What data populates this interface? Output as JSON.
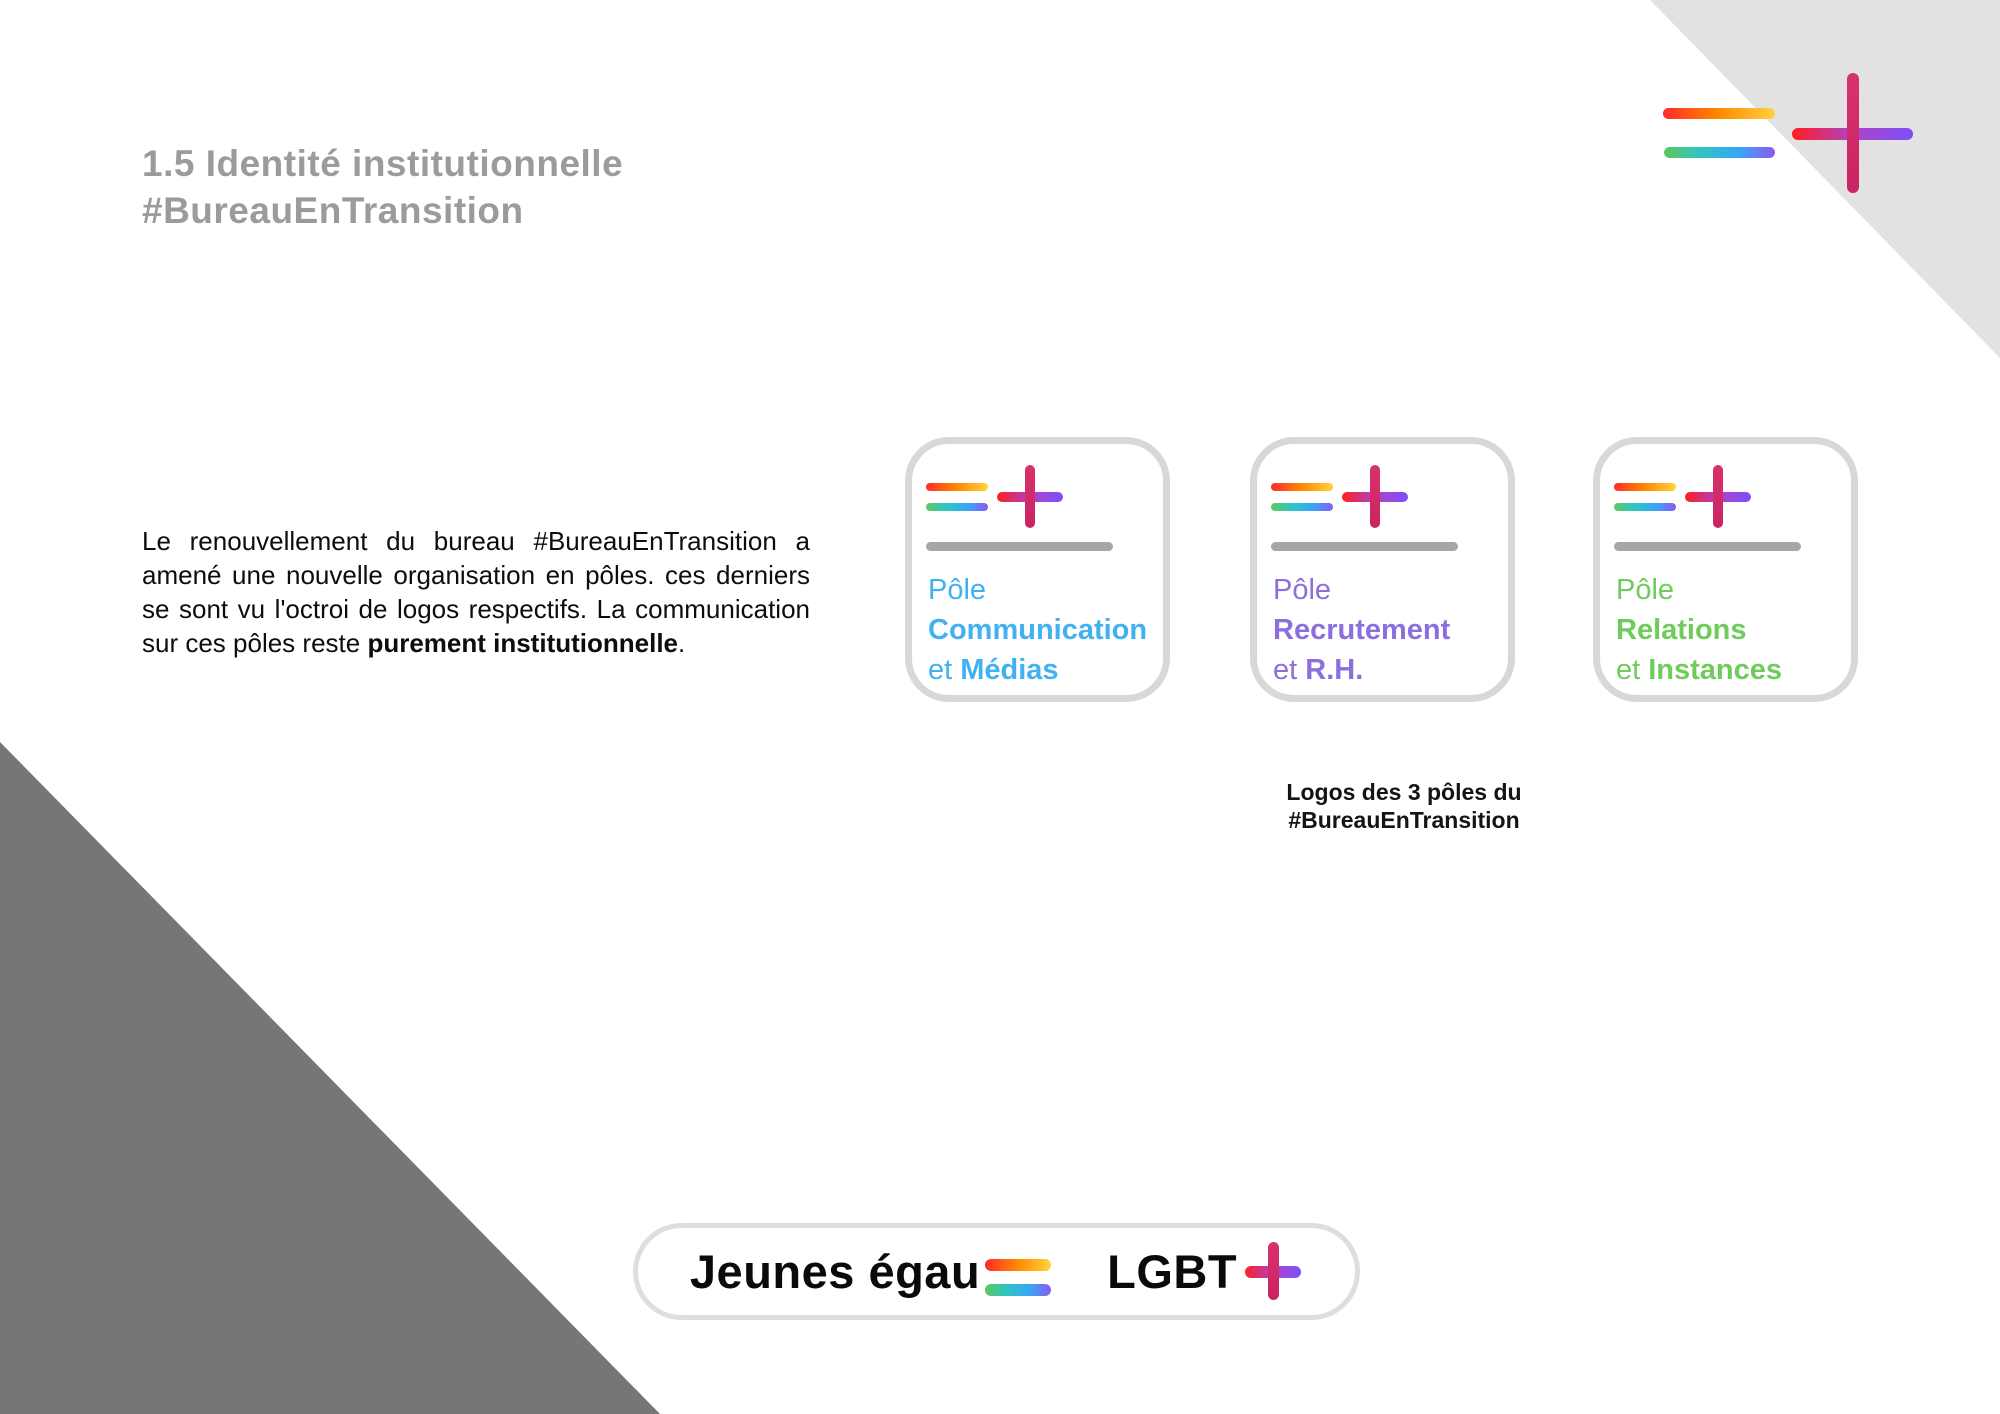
{
  "slide": {
    "title": {
      "line1": "1.5 Identité institutionnelle",
      "line2": "#BureauEnTransition"
    },
    "paragraph": {
      "lead": "Le renouvellement  du bureau #BureauEnTransition a amené une nouvelle organisation  en pôles. ces derniers se sont vu l'octroi de logos respectifs. La communication sur ces pôles reste ",
      "emphasis": "purement institutionnelle",
      "tail": "."
    },
    "cards": [
      {
        "word1": "Pôle",
        "word2": "Communication",
        "word3a": "et ",
        "word3b": "Médias",
        "color": "#41b1f2"
      },
      {
        "word1": "Pôle",
        "word2": "Recrutement",
        "word3a": "et ",
        "word3b": "R.H.",
        "color": "#8c6ede"
      },
      {
        "word1": "Pôle",
        "word2": "Relations",
        "word3a": "et ",
        "word3b": "Instances",
        "color": "#6fcb5b"
      }
    ],
    "caption": {
      "line1": "Logos des 3 pôles du",
      "line2": "#BureauEnTransition"
    },
    "footer_logo": {
      "wordmark_left": "Jeunes égau",
      "wordmark_right": "LGBT"
    },
    "icons": {
      "brand": "equals-plus-logo",
      "equals": "rainbow-equals-icon",
      "plus": "gradient-plus-icon"
    },
    "colors": {
      "card_blue": "#41b1f2",
      "card_purple": "#8c6ede",
      "card_green": "#6fcb5b",
      "title_gray": "#9b9b9b",
      "divider_gray": "#a6a6a6",
      "card_border": "#d8d8d8",
      "pill_border": "#dedede",
      "triangle_dark": "#767676",
      "triangle_light": "#e2e2e2",
      "plus_crimson": "#d12d68"
    }
  }
}
